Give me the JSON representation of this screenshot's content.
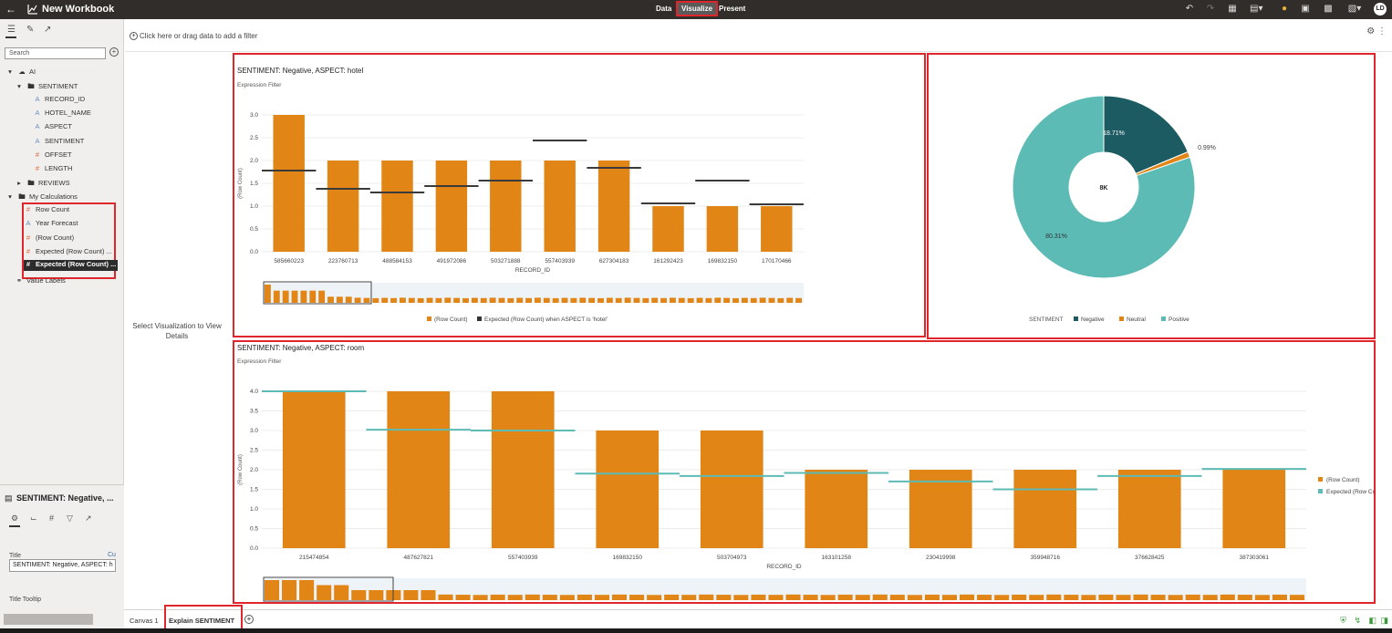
{
  "topbar": {
    "title": "New Workbook",
    "tabs": [
      "Data",
      "Visualize",
      "Present"
    ],
    "avatar": "LD"
  },
  "left": {
    "search_placeholder": "Search",
    "tree": {
      "root": "AI",
      "sentiment_folder": "SENTIMENT",
      "sentiment_cols": [
        {
          "type": "A",
          "label": "RECORD_ID"
        },
        {
          "type": "A",
          "label": "HOTEL_NAME"
        },
        {
          "type": "A",
          "label": "ASPECT"
        },
        {
          "type": "A",
          "label": "SENTIMENT"
        },
        {
          "type": "#",
          "label": "OFFSET"
        },
        {
          "type": "#",
          "label": "LENGTH"
        }
      ],
      "reviews_folder": "REVIEWS",
      "calc_folder": "My Calculations",
      "calc_items": [
        {
          "type": "#",
          "label": "Row Count"
        },
        {
          "type": "A",
          "label": "Year Forecast"
        },
        {
          "type": "#",
          "label": "(Row Count)"
        },
        {
          "type": "#",
          "label": "Expected (Row Count) ..."
        },
        {
          "type": "#",
          "label": "Expected (Row Count) ..."
        }
      ],
      "value_labels": "Value Labels"
    },
    "props": {
      "title": "SENTIMENT: Negative, ...",
      "title_label": "Title",
      "title_value": "SENTIMENT: Negative, ASPECT: h",
      "custom_link": "Cu",
      "tooltip_label": "Title Tooltip"
    }
  },
  "filterbar": {
    "text": "Click here or drag data to add a filter"
  },
  "canvas": {
    "select_viz": "Select Visualization to View Details"
  },
  "viz1": {
    "title": "SENTIMENT: Negative, ASPECT: hotel",
    "subtitle": "Expression Filter"
  },
  "viz2": {
    "title": "",
    "subtitle": ""
  },
  "viz3": {
    "title": "SENTIMENT: Negative, ASPECT: room",
    "subtitle": "Expression Filter"
  },
  "bottom": {
    "tabs": [
      "Canvas 1",
      "Explain SENTIMENT"
    ]
  },
  "colors": {
    "orange": "#e08516",
    "teal": "#5dbbb6",
    "darkteal": "#1d5b63",
    "red": "#e0262d"
  },
  "chart_data": [
    {
      "type": "bar",
      "title": "SENTIMENT: Negative, ASPECT: hotel",
      "xlabel": "RECORD_ID",
      "ylabel": "(Row Count)",
      "ylim": [
        0,
        3.0
      ],
      "yticks": [
        "0.0",
        "0.5",
        "1.0",
        "1.5",
        "2.0",
        "2.5",
        "3.0"
      ],
      "categories": [
        "585660223",
        "223760713",
        "488584153",
        "491972086",
        "503271888",
        "557403939",
        "627304183",
        "161292423",
        "169832150",
        "170170466"
      ],
      "series": [
        {
          "name": "(Row Count)",
          "values": [
            3,
            2,
            2,
            2,
            2,
            2,
            2,
            1,
            1,
            1
          ]
        },
        {
          "name": "Expected (Row Count) when ASPECT is 'hotel'",
          "values": [
            1.78,
            1.38,
            1.3,
            1.44,
            1.56,
            2.44,
            1.84,
            1.06,
            1.56,
            1.04
          ]
        }
      ],
      "legend": [
        "(Row Count)",
        "Expected (Row Count) when ASPECT is 'hotel'"
      ],
      "legend_position": "bottom"
    },
    {
      "type": "pie",
      "center_label": "8K",
      "legend_title": "SENTIMENT",
      "labels": [
        "Negative",
        "Neutral",
        "Positive"
      ],
      "values": [
        18.71,
        0.99,
        80.31
      ],
      "value_labels": [
        "18.71%",
        "0.99%",
        "80.31%"
      ],
      "legend_position": "bottom"
    },
    {
      "type": "bar",
      "title": "SENTIMENT: Negative, ASPECT: room",
      "xlabel": "RECORD_ID",
      "ylabel": "(Row Count)",
      "ylim": [
        0,
        4.0
      ],
      "yticks": [
        "0.0",
        "0.5",
        "1.0",
        "1.5",
        "2.0",
        "2.5",
        "3.0",
        "3.5",
        "4.0"
      ],
      "categories": [
        "215474854",
        "487627821",
        "557403939",
        "169832150",
        "503704973",
        "163101258",
        "230419998",
        "359948716",
        "376628425",
        "387303061"
      ],
      "series": [
        {
          "name": "(Row Count)",
          "values": [
            4,
            4,
            4,
            3,
            3,
            2,
            2,
            2,
            2,
            2
          ]
        },
        {
          "name": "Expected (Row Co...",
          "values": [
            4.0,
            3.02,
            3.0,
            1.9,
            1.84,
            1.92,
            1.7,
            1.5,
            1.84,
            2.02
          ]
        }
      ],
      "legend": [
        "(Row Count)",
        "Expected (Row Co..."
      ],
      "legend_position": "right"
    }
  ]
}
